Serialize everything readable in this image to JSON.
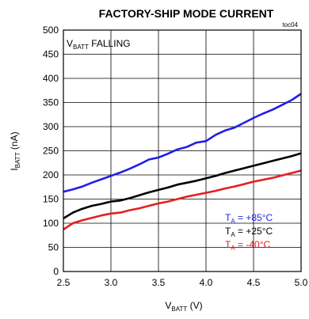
{
  "chart_data": {
    "type": "line",
    "title": "FACTORY-SHIP MODE CURRENT",
    "tag": "toc04",
    "annotation": {
      "main": "V",
      "sub": "BATT",
      "rest": " FALLING"
    },
    "xlabel": {
      "main": "V",
      "sub": "BATT",
      "rest": " (V)"
    },
    "ylabel": {
      "main": "I",
      "sub": "BATT",
      "rest": " (nA)"
    },
    "xlim": [
      2.5,
      5.0
    ],
    "ylim": [
      0,
      500
    ],
    "xticks": [
      "2.5",
      "3.0",
      "3.5",
      "4.0",
      "4.5",
      "5.0"
    ],
    "yticks": [
      "0",
      "50",
      "100",
      "150",
      "200",
      "250",
      "300",
      "350",
      "400",
      "450",
      "500"
    ],
    "grid": true,
    "legend_position": "bottom-right",
    "series": [
      {
        "name": "TA = +85°C",
        "legend": {
          "main": "T",
          "sub": "A",
          "rest": " = +85°C"
        },
        "color": "#1f1fe6",
        "x": [
          2.5,
          2.6,
          2.7,
          2.8,
          2.9,
          3.0,
          3.1,
          3.2,
          3.3,
          3.4,
          3.5,
          3.6,
          3.7,
          3.8,
          3.9,
          4.0,
          4.1,
          4.2,
          4.3,
          4.4,
          4.5,
          4.6,
          4.7,
          4.8,
          4.9,
          5.0
        ],
        "y": [
          165,
          170,
          176,
          184,
          191,
          198,
          205,
          213,
          222,
          232,
          236,
          244,
          253,
          258,
          267,
          270,
          283,
          292,
          298,
          308,
          318,
          327,
          335,
          345,
          355,
          368
        ]
      },
      {
        "name": "TA = +25°C",
        "legend": {
          "main": "T",
          "sub": "A",
          "rest": " = +25°C"
        },
        "color": "#000000",
        "x": [
          2.5,
          2.6,
          2.7,
          2.8,
          2.9,
          3.0,
          3.1,
          3.2,
          3.3,
          3.4,
          3.5,
          3.6,
          3.7,
          3.8,
          3.9,
          4.0,
          4.1,
          4.2,
          4.3,
          4.4,
          4.5,
          4.6,
          4.7,
          4.8,
          4.9,
          5.0
        ],
        "y": [
          110,
          122,
          130,
          136,
          140,
          145,
          147,
          152,
          158,
          164,
          169,
          174,
          180,
          184,
          188,
          193,
          198,
          204,
          209,
          214,
          219,
          224,
          229,
          234,
          239,
          245
        ]
      },
      {
        "name": "TA = -40°C",
        "legend": {
          "main": "T",
          "sub": "A",
          "rest": " = -40°C"
        },
        "color": "#e61e1e",
        "x": [
          2.5,
          2.6,
          2.7,
          2.8,
          2.9,
          3.0,
          3.1,
          3.2,
          3.3,
          3.4,
          3.5,
          3.6,
          3.7,
          3.8,
          3.9,
          4.0,
          4.1,
          4.2,
          4.3,
          4.4,
          4.5,
          4.6,
          4.7,
          4.8,
          4.9,
          5.0
        ],
        "y": [
          87,
          100,
          106,
          111,
          116,
          120,
          122,
          127,
          131,
          136,
          141,
          145,
          150,
          155,
          159,
          163,
          167,
          172,
          176,
          181,
          186,
          190,
          194,
          199,
          204,
          209
        ]
      }
    ]
  }
}
